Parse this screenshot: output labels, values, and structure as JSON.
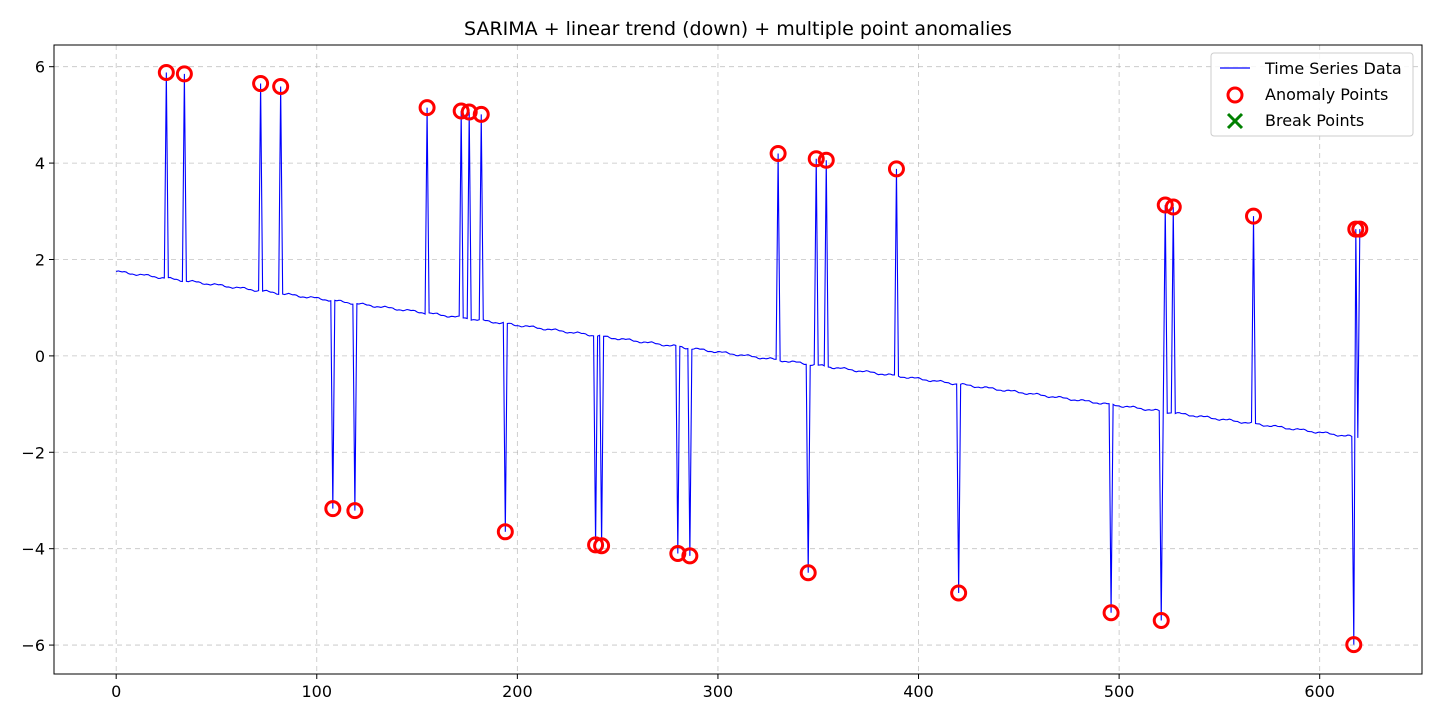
{
  "chart_data": {
    "type": "line",
    "title": "SARIMA + linear trend (down) + multiple point anomalies",
    "xlabel": "",
    "ylabel": "",
    "xlim": [
      -31,
      651
    ],
    "ylim": [
      -6.6,
      6.45
    ],
    "x_ticks": [
      0,
      100,
      200,
      300,
      400,
      500,
      600
    ],
    "y_ticks": [
      -6,
      -4,
      -2,
      0,
      2,
      4,
      6
    ],
    "x_tick_labels": [
      "0",
      "100",
      "200",
      "300",
      "400",
      "500",
      "600"
    ],
    "y_tick_labels": [
      "−6",
      "−4",
      "−2",
      "0",
      "2",
      "4",
      "6"
    ],
    "grid": true,
    "legend_position": "top-right",
    "colors": {
      "series": "#0000ff",
      "anomaly": "#ff0000",
      "break": "#008000"
    },
    "trend": {
      "start": [
        0,
        1.75
      ],
      "end": [
        620,
        -1.7
      ]
    },
    "series": [
      {
        "name": "Time Series Data",
        "kind": "line"
      },
      {
        "name": "Anomaly Points",
        "kind": "scatter",
        "marker": "circle",
        "points": [
          [
            25,
            5.88
          ],
          [
            34,
            5.85
          ],
          [
            72,
            5.65
          ],
          [
            82,
            5.59
          ],
          [
            108,
            -3.17
          ],
          [
            119,
            -3.21
          ],
          [
            155,
            5.15
          ],
          [
            172,
            5.08
          ],
          [
            176,
            5.06
          ],
          [
            182,
            5.01
          ],
          [
            194,
            -3.65
          ],
          [
            239,
            -3.92
          ],
          [
            242,
            -3.94
          ],
          [
            280,
            -4.1
          ],
          [
            286,
            -4.15
          ],
          [
            330,
            4.2
          ],
          [
            345,
            -4.5
          ],
          [
            349,
            4.09
          ],
          [
            354,
            4.06
          ],
          [
            389,
            3.88
          ],
          [
            420,
            -4.92
          ],
          [
            496,
            -5.33
          ],
          [
            521,
            -5.49
          ],
          [
            523,
            3.13
          ],
          [
            527,
            3.09
          ],
          [
            567,
            2.9
          ],
          [
            617,
            -5.99
          ],
          [
            618,
            2.63
          ],
          [
            620,
            2.63
          ]
        ]
      },
      {
        "name": "Break Points",
        "kind": "scatter",
        "marker": "x",
        "points": []
      }
    ]
  }
}
